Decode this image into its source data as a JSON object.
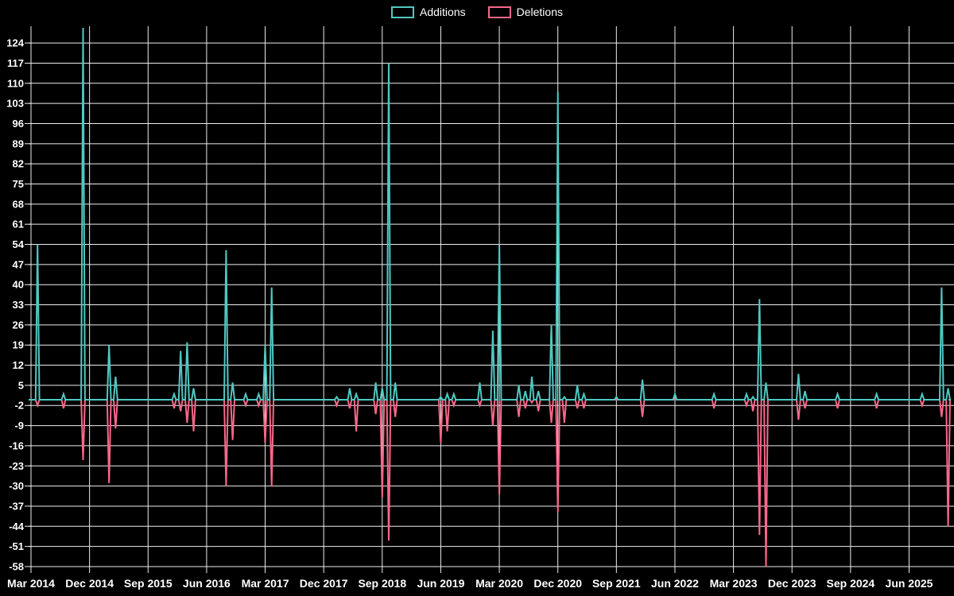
{
  "legend": {
    "items": [
      {
        "label": "Additions",
        "color": "#50C8C2"
      },
      {
        "label": "Deletions",
        "color": "#F8688A"
      }
    ]
  },
  "colors": {
    "background": "#000000",
    "gridline": "#EDEDED",
    "axis_text": "#FFFFFF",
    "additions": "#50C8C2",
    "deletions": "#F8688A"
  },
  "chart_data": {
    "type": "line",
    "title": "",
    "xlabel": "",
    "ylabel": "",
    "legend_position": "top-center",
    "grid": true,
    "x_unit": "month",
    "x_start": "Mar 2014",
    "x_end": "Dec 2025",
    "ylim": [
      -58,
      129
    ],
    "baseline": 0,
    "y_ticks": [
      124,
      117,
      110,
      103,
      96,
      89,
      82,
      75,
      68,
      61,
      54,
      47,
      40,
      33,
      26,
      19,
      12,
      5,
      -2,
      -9,
      -16,
      -23,
      -30,
      -37,
      -44,
      -51,
      -58
    ],
    "x_ticks": [
      {
        "i": 0,
        "label": "Mar 2014"
      },
      {
        "i": 9,
        "label": "Dec 2014"
      },
      {
        "i": 18,
        "label": "Sep 2015"
      },
      {
        "i": 27,
        "label": "Jun 2016"
      },
      {
        "i": 36,
        "label": "Mar 2017"
      },
      {
        "i": 45,
        "label": "Dec 2017"
      },
      {
        "i": 54,
        "label": "Sep 2018"
      },
      {
        "i": 63,
        "label": "Jun 2019"
      },
      {
        "i": 72,
        "label": "Mar 2020"
      },
      {
        "i": 81,
        "label": "Dec 2020"
      },
      {
        "i": 90,
        "label": "Sep 2021"
      },
      {
        "i": 99,
        "label": "Jun 2022"
      },
      {
        "i": 108,
        "label": "Mar 2023"
      },
      {
        "i": 117,
        "label": "Dec 2023"
      },
      {
        "i": 126,
        "label": "Sep 2024"
      },
      {
        "i": 135,
        "label": "Jun 2025"
      }
    ],
    "series": [
      {
        "name": "Additions",
        "color": "#50C8C2",
        "direction": "up"
      },
      {
        "name": "Deletions",
        "color": "#F8688A",
        "direction": "down"
      }
    ],
    "zero_note": "Months not listed in events have additions 0 and deletions 0 (flat baseline).",
    "events": [
      {
        "month": "Apr 2014",
        "i": 1,
        "additions": 54,
        "deletions": -2
      },
      {
        "month": "Aug 2014",
        "i": 5,
        "additions": 2,
        "deletions": -3
      },
      {
        "month": "Nov 2014",
        "i": 8,
        "additions": 130,
        "deletions": -21,
        "clipped": true
      },
      {
        "month": "Mar 2015",
        "i": 12,
        "additions": 19,
        "deletions": -29
      },
      {
        "month": "Apr 2015",
        "i": 13,
        "additions": 8,
        "deletions": -10
      },
      {
        "month": "Jan 2016",
        "i": 22,
        "additions": 2,
        "deletions": -3
      },
      {
        "month": "Feb 2016",
        "i": 23,
        "additions": 17,
        "deletions": -4
      },
      {
        "month": "Mar 2016",
        "i": 24,
        "additions": 20,
        "deletions": -8
      },
      {
        "month": "Apr 2016",
        "i": 25,
        "additions": 4,
        "deletions": -11
      },
      {
        "month": "Sep 2016",
        "i": 30,
        "additions": 52,
        "deletions": -30
      },
      {
        "month": "Oct 2016",
        "i": 31,
        "additions": 6,
        "deletions": -14
      },
      {
        "month": "Dec 2016",
        "i": 33,
        "additions": 2,
        "deletions": -2
      },
      {
        "month": "Feb 2017",
        "i": 35,
        "additions": 2,
        "deletions": -2
      },
      {
        "month": "Mar 2017",
        "i": 36,
        "additions": 19,
        "deletions": -15
      },
      {
        "month": "Apr 2017",
        "i": 37,
        "additions": 39,
        "deletions": -30
      },
      {
        "month": "Feb 2018",
        "i": 47,
        "additions": 1,
        "deletions": -2
      },
      {
        "month": "Apr 2018",
        "i": 49,
        "additions": 4,
        "deletions": -3
      },
      {
        "month": "May 2018",
        "i": 50,
        "additions": 2,
        "deletions": -11
      },
      {
        "month": "Aug 2018",
        "i": 53,
        "additions": 6,
        "deletions": -5
      },
      {
        "month": "Sep 2018",
        "i": 54,
        "additions": 4,
        "deletions": -34
      },
      {
        "month": "Oct 2018",
        "i": 55,
        "additions": 117,
        "deletions": -49
      },
      {
        "month": "Nov 2018",
        "i": 56,
        "additions": 6,
        "deletions": -6
      },
      {
        "month": "Jun 2019",
        "i": 63,
        "additions": 1,
        "deletions": -15
      },
      {
        "month": "Jul 2019",
        "i": 64,
        "additions": 2,
        "deletions": -11
      },
      {
        "month": "Aug 2019",
        "i": 65,
        "additions": 2,
        "deletions": -2
      },
      {
        "month": "Dec 2019",
        "i": 69,
        "additions": 6,
        "deletions": -2
      },
      {
        "month": "Feb 2020",
        "i": 71,
        "additions": 24,
        "deletions": -9
      },
      {
        "month": "Mar 2020",
        "i": 72,
        "additions": 54,
        "deletions": -33
      },
      {
        "month": "Jun 2020",
        "i": 75,
        "additions": 5,
        "deletions": -6
      },
      {
        "month": "Jul 2020",
        "i": 76,
        "additions": 3,
        "deletions": -3
      },
      {
        "month": "Aug 2020",
        "i": 77,
        "additions": 8,
        "deletions": -1
      },
      {
        "month": "Sep 2020",
        "i": 78,
        "additions": 3,
        "deletions": -4
      },
      {
        "month": "Nov 2020",
        "i": 80,
        "additions": 26,
        "deletions": -8
      },
      {
        "month": "Dec 2020",
        "i": 81,
        "additions": 107,
        "deletions": -39
      },
      {
        "month": "Jan 2021",
        "i": 82,
        "additions": 1,
        "deletions": -8
      },
      {
        "month": "Mar 2021",
        "i": 84,
        "additions": 5,
        "deletions": -3
      },
      {
        "month": "Apr 2021",
        "i": 85,
        "additions": 2,
        "deletions": -3
      },
      {
        "month": "Sep 2021",
        "i": 90,
        "additions": 1,
        "deletions": 0
      },
      {
        "month": "Jan 2022",
        "i": 94,
        "additions": 7,
        "deletions": -6
      },
      {
        "month": "Jun 2022",
        "i": 99,
        "additions": 2,
        "deletions": 0
      },
      {
        "month": "Dec 2022",
        "i": 105,
        "additions": 2,
        "deletions": -3
      },
      {
        "month": "May 2023",
        "i": 110,
        "additions": 2,
        "deletions": -2
      },
      {
        "month": "Jun 2023",
        "i": 111,
        "additions": 1,
        "deletions": -4
      },
      {
        "month": "Jul 2023",
        "i": 112,
        "additions": 35,
        "deletions": -47
      },
      {
        "month": "Aug 2023",
        "i": 113,
        "additions": 6,
        "deletions": -58
      },
      {
        "month": "Jan 2024",
        "i": 118,
        "additions": 9,
        "deletions": -7
      },
      {
        "month": "Feb 2024",
        "i": 119,
        "additions": 3,
        "deletions": -3
      },
      {
        "month": "Jul 2024",
        "i": 124,
        "additions": 2,
        "deletions": -3
      },
      {
        "month": "Jan 2025",
        "i": 130,
        "additions": 2,
        "deletions": -3
      },
      {
        "month": "Aug 2025",
        "i": 137,
        "additions": 2,
        "deletions": -2
      },
      {
        "month": "Nov 2025",
        "i": 140,
        "additions": 39,
        "deletions": -6
      },
      {
        "month": "Dec 2025",
        "i": 141,
        "additions": 4,
        "deletions": -44
      }
    ]
  }
}
